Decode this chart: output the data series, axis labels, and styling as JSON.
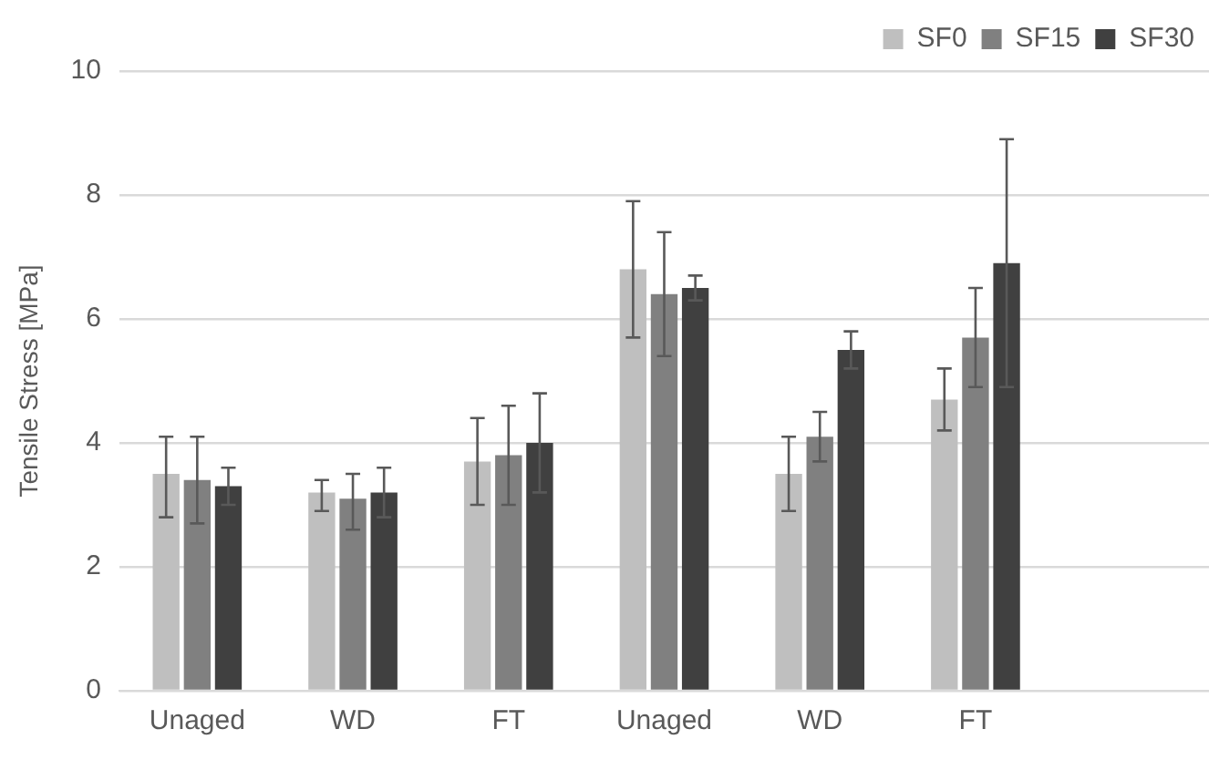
{
  "chart_data": {
    "type": "bar",
    "ylabel": "Tensile Stress [MPa]",
    "categories": [
      "Unaged",
      "WD",
      "FT",
      "Unaged",
      "WD",
      "FT",
      null
    ],
    "series": [
      {
        "name": "SF0",
        "color": "#bfbfbf",
        "values": [
          3.5,
          3.2,
          3.7,
          6.8,
          3.5,
          4.7,
          null
        ],
        "errors": [
          [
            2.8,
            4.1
          ],
          [
            2.9,
            3.4
          ],
          [
            3.0,
            4.4
          ],
          [
            5.7,
            7.9
          ],
          [
            2.9,
            4.1
          ],
          [
            4.2,
            5.2
          ],
          null
        ]
      },
      {
        "name": "SF15",
        "color": "#808080",
        "values": [
          3.4,
          3.1,
          3.8,
          6.4,
          4.1,
          5.7,
          null
        ],
        "errors": [
          [
            2.7,
            4.1
          ],
          [
            2.6,
            3.5
          ],
          [
            3.0,
            4.6
          ],
          [
            5.4,
            7.4
          ],
          [
            3.7,
            4.5
          ],
          [
            4.9,
            6.5
          ],
          null
        ]
      },
      {
        "name": "SF30",
        "color": "#404040",
        "values": [
          3.3,
          3.2,
          4.0,
          6.5,
          5.5,
          6.9,
          null
        ],
        "errors": [
          [
            3.0,
            3.6
          ],
          [
            2.8,
            3.6
          ],
          [
            3.2,
            4.8
          ],
          [
            6.3,
            6.7
          ],
          [
            5.2,
            5.8
          ],
          [
            4.9,
            8.9
          ],
          null
        ]
      }
    ],
    "ylim": [
      0,
      10
    ],
    "yticks": [
      0,
      2,
      4,
      6,
      8,
      10
    ],
    "grid": "y",
    "legend": "top right"
  }
}
